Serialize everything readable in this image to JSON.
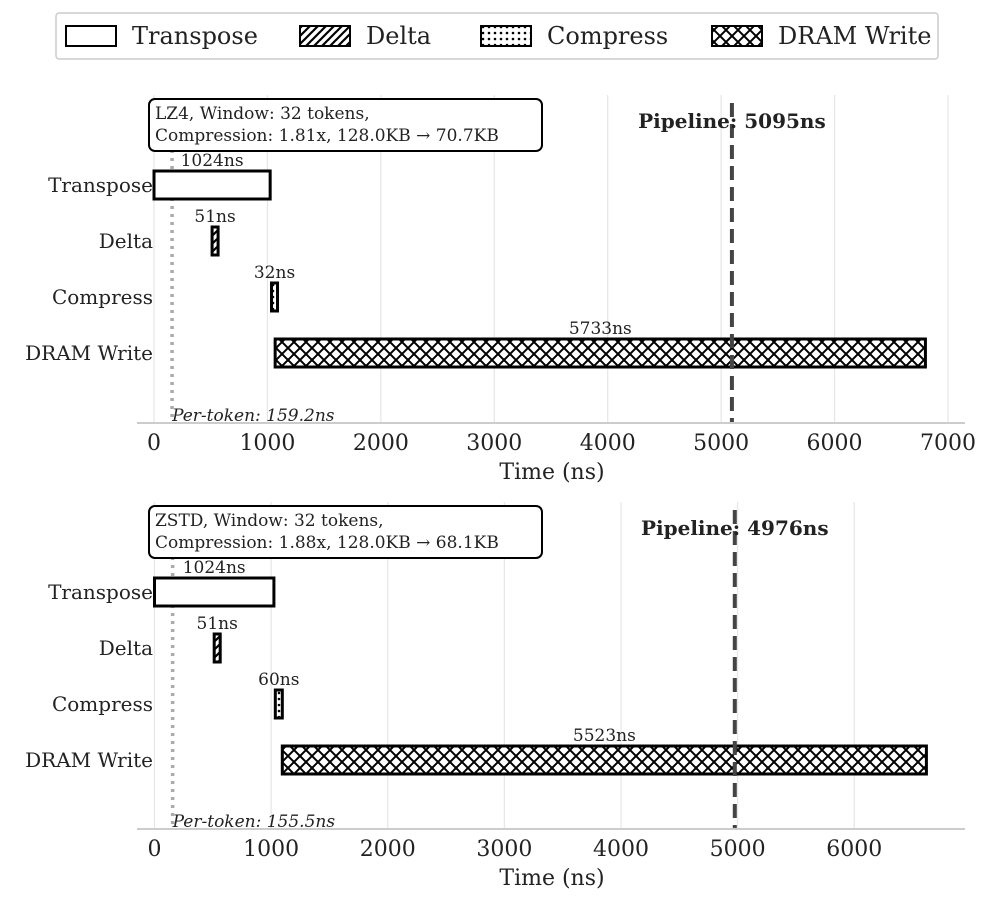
{
  "colors": {
    "stroke": "#000000",
    "grid": "#e6e6e6",
    "axis": "#cccccc",
    "pipeline_line": "#444444",
    "per_token_line": "#aaaaaa",
    "text": "#222222"
  },
  "legend": {
    "entries": [
      {
        "name": "Transpose",
        "pattern": "none"
      },
      {
        "name": "Delta",
        "pattern": "diagonal"
      },
      {
        "name": "Compress",
        "pattern": "dots"
      },
      {
        "name": "DRAM Write",
        "pattern": "crosshatch"
      }
    ]
  },
  "chart_data": [
    {
      "type": "gantt",
      "info_lines": [
        "LZ4, Window: 32 tokens,",
        "Compression: 1.81x, 128.0KB → 70.7KB"
      ],
      "categories": [
        "Transpose",
        "Delta",
        "Compress",
        "DRAM Write"
      ],
      "bars": [
        {
          "stage": "Transpose",
          "start": 0,
          "duration": 1024,
          "label": "1024ns",
          "pattern": "none"
        },
        {
          "stage": "Delta",
          "start": 512,
          "duration": 51,
          "label": "51ns",
          "pattern": "diagonal"
        },
        {
          "stage": "Compress",
          "start": 1036,
          "duration": 32,
          "label": "32ns",
          "pattern": "dots"
        },
        {
          "stage": "DRAM Write",
          "start": 1068,
          "duration": 5733,
          "label": "5733ns",
          "pattern": "crosshatch"
        }
      ],
      "pipeline": {
        "value": 5095,
        "label": "Pipeline: 5095ns"
      },
      "per_token": {
        "value": 159.2,
        "label": "Per-token: 159.2ns"
      },
      "xlabel": "Time (ns)",
      "xlim": [
        -150,
        7150
      ],
      "xticks": [
        0,
        1000,
        2000,
        3000,
        4000,
        5000,
        6000,
        7000
      ],
      "grid": true
    },
    {
      "type": "gantt",
      "info_lines": [
        "ZSTD, Window: 32 tokens,",
        "Compression: 1.88x, 128.0KB → 68.1KB"
      ],
      "categories": [
        "Transpose",
        "Delta",
        "Compress",
        "DRAM Write"
      ],
      "bars": [
        {
          "stage": "Transpose",
          "start": 0,
          "duration": 1024,
          "label": "1024ns",
          "pattern": "none"
        },
        {
          "stage": "Delta",
          "start": 512,
          "duration": 51,
          "label": "51ns",
          "pattern": "diagonal"
        },
        {
          "stage": "Compress",
          "start": 1036,
          "duration": 60,
          "label": "60ns",
          "pattern": "dots"
        },
        {
          "stage": "DRAM Write",
          "start": 1096,
          "duration": 5523,
          "label": "5523ns",
          "pattern": "crosshatch"
        }
      ],
      "pipeline": {
        "value": 4976,
        "label": "Pipeline: 4976ns"
      },
      "per_token": {
        "value": 155.5,
        "label": "Per-token: 155.5ns"
      },
      "xlabel": "Time (ns)",
      "xlim": [
        -150,
        6950
      ],
      "xticks": [
        0,
        1000,
        2000,
        3000,
        4000,
        5000,
        6000
      ],
      "grid": true
    }
  ]
}
